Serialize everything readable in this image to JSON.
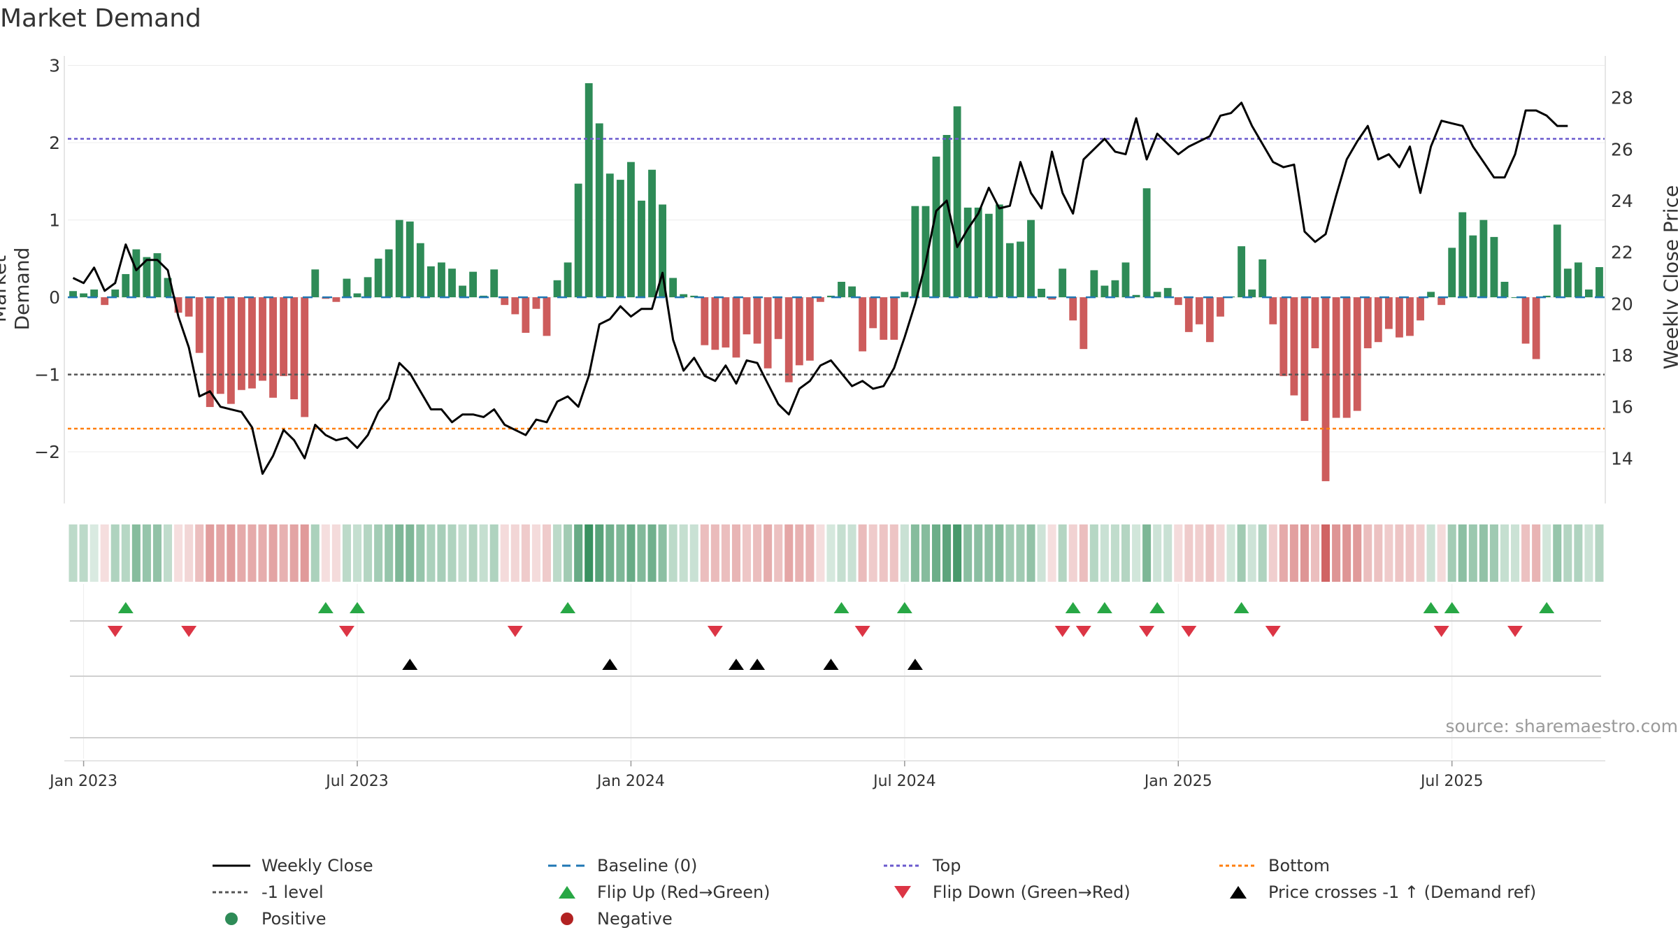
{
  "title": "Market Demand",
  "source": "source: sharemaestro.com",
  "colors": {
    "positive": "#2e8b57",
    "negative": "#cd5c5c",
    "price_line": "#000000",
    "baseline": "#1f77b4",
    "top": "#6a5acd",
    "bottom": "#ff7f0e",
    "minus_one": "#555555",
    "flip_up": "#28a745",
    "flip_down": "#dc3545",
    "cross": "#000000"
  },
  "chart_data": {
    "type": "bar+line",
    "title": "Market Demand",
    "ylabel_left": "Market Demand",
    "ylabel_right": "Weekly Close Price",
    "ylim_left": [
      -2.65,
      3.05
    ],
    "ylim_right": [
      12.3,
      29.4
    ],
    "yticks_left": [
      3,
      2,
      1,
      0,
      -1,
      -2
    ],
    "ytick_labels_left": [
      "3",
      "2",
      "1",
      "0",
      "−1",
      "−2"
    ],
    "yticks_right": [
      14,
      16,
      18,
      20,
      22,
      24,
      26,
      28
    ],
    "ytick_labels_right": [
      "14",
      "16",
      "18",
      "20",
      "22",
      "24",
      "26",
      "28"
    ],
    "x_ticks": [
      {
        "week": 1,
        "label": "Jan 2023"
      },
      {
        "week": 27,
        "label": "Jul 2023"
      },
      {
        "week": 53,
        "label": "Jan 2024"
      },
      {
        "week": 79,
        "label": "Jul 2024"
      },
      {
        "week": 105,
        "label": "Jan 2025"
      },
      {
        "week": 131,
        "label": "Jul 2025"
      }
    ],
    "reference_lines": {
      "top": 2.05,
      "bottom": -1.7,
      "minus_one": -1.0,
      "baseline": 0
    },
    "demand": [
      0.08,
      0.05,
      0.1,
      -0.1,
      0.1,
      0.3,
      0.62,
      0.52,
      0.57,
      0.25,
      -0.2,
      -0.25,
      -0.72,
      -1.42,
      -1.25,
      -1.38,
      -1.2,
      -1.18,
      -1.08,
      -1.3,
      -1.02,
      -1.32,
      -1.55,
      0.36,
      -0.02,
      -0.06,
      0.24,
      0.05,
      0.26,
      0.5,
      0.62,
      1.0,
      0.98,
      0.7,
      0.4,
      0.45,
      0.37,
      0.15,
      0.33,
      0.02,
      0.36,
      -0.1,
      -0.22,
      -0.46,
      -0.15,
      -0.5,
      0.22,
      0.45,
      1.47,
      2.77,
      2.25,
      1.6,
      1.52,
      1.75,
      1.25,
      1.65,
      1.2,
      0.25,
      0.04,
      0.02,
      -0.62,
      -0.68,
      -0.65,
      -0.78,
      -0.48,
      -0.6,
      -0.92,
      -0.54,
      -1.1,
      -0.88,
      -0.82,
      -0.06,
      0.02,
      0.2,
      0.14,
      -0.7,
      -0.4,
      -0.55,
      -0.55,
      0.07,
      1.18,
      1.18,
      1.82,
      2.1,
      2.47,
      1.16,
      1.16,
      1.08,
      1.2,
      0.7,
      0.72,
      1.0,
      0.11,
      -0.03,
      0.37,
      -0.3,
      -0.67,
      0.35,
      0.15,
      0.22,
      0.45,
      0.03,
      1.41,
      0.07,
      0.12,
      -0.1,
      -0.45,
      -0.35,
      -0.58,
      -0.25,
      0.01,
      0.66,
      0.1,
      0.49,
      -0.35,
      -1.02,
      -1.27,
      -1.6,
      -0.66,
      -2.38,
      -1.56,
      -1.56,
      -1.47,
      -0.66,
      -0.58,
      -0.41,
      -0.52,
      -0.5,
      -0.3,
      0.07,
      -0.1,
      0.64,
      1.1,
      0.8,
      1.0,
      0.78,
      0.2,
      0.0,
      -0.6,
      -0.8,
      0.02,
      0.94,
      0.37,
      0.45,
      0.1,
      0.39
    ],
    "weekly_close": [
      21.0,
      20.8,
      21.4,
      20.5,
      20.8,
      22.3,
      21.3,
      21.7,
      21.7,
      21.3,
      19.5,
      18.3,
      16.4,
      16.6,
      16.0,
      15.9,
      15.8,
      15.2,
      13.4,
      14.1,
      15.1,
      14.7,
      14.0,
      15.3,
      14.9,
      14.7,
      14.8,
      14.4,
      14.9,
      15.8,
      16.3,
      17.7,
      17.3,
      16.6,
      15.9,
      15.9,
      15.4,
      15.7,
      15.7,
      15.6,
      15.9,
      15.3,
      15.1,
      14.9,
      15.5,
      15.4,
      16.2,
      16.4,
      16.0,
      17.2,
      19.2,
      19.4,
      19.9,
      19.5,
      19.8,
      19.8,
      21.2,
      18.6,
      17.4,
      17.9,
      17.2,
      17.0,
      17.6,
      16.9,
      17.8,
      17.7,
      16.9,
      16.1,
      15.7,
      16.7,
      17.0,
      17.6,
      17.8,
      17.3,
      16.8,
      17.0,
      16.7,
      16.8,
      17.5,
      18.7,
      20.0,
      21.6,
      23.6,
      24.0,
      22.2,
      22.9,
      23.5,
      24.5,
      23.7,
      23.8,
      25.5,
      24.3,
      23.7,
      25.9,
      24.3,
      23.5,
      25.6,
      26.0,
      26.4,
      25.9,
      25.8,
      27.2,
      25.6,
      26.6,
      26.2,
      25.8,
      26.1,
      26.3,
      26.5,
      27.3,
      27.4,
      27.8,
      26.9,
      26.2,
      25.5,
      25.3,
      25.4,
      22.8,
      22.4,
      22.7,
      24.2,
      25.6,
      26.3,
      26.9,
      25.6,
      25.8,
      25.3,
      26.1,
      24.3,
      26.1,
      27.1,
      27.0,
      26.9,
      26.1,
      25.5,
      24.9,
      24.9,
      25.8,
      27.5,
      27.5,
      27.3,
      26.9,
      26.9
    ],
    "strip_intensity": [
      0.32,
      0.32,
      0.18,
      0.2,
      0.38,
      0.35,
      0.58,
      0.5,
      0.52,
      0.3,
      0.2,
      0.25,
      0.4,
      0.6,
      0.56,
      0.6,
      0.52,
      0.52,
      0.5,
      0.56,
      0.48,
      0.56,
      0.62,
      0.4,
      0.2,
      0.22,
      0.32,
      0.28,
      0.36,
      0.44,
      0.5,
      0.62,
      0.62,
      0.5,
      0.4,
      0.42,
      0.38,
      0.3,
      0.36,
      0.28,
      0.38,
      0.22,
      0.25,
      0.32,
      0.22,
      0.32,
      0.32,
      0.45,
      0.72,
      0.95,
      0.8,
      0.68,
      0.62,
      0.72,
      0.6,
      0.68,
      0.55,
      0.32,
      0.28,
      0.26,
      0.4,
      0.42,
      0.4,
      0.45,
      0.35,
      0.4,
      0.5,
      0.38,
      0.55,
      0.48,
      0.46,
      0.2,
      0.2,
      0.28,
      0.26,
      0.42,
      0.32,
      0.36,
      0.36,
      0.26,
      0.58,
      0.58,
      0.7,
      0.78,
      0.88,
      0.56,
      0.56,
      0.55,
      0.58,
      0.45,
      0.45,
      0.52,
      0.24,
      0.2,
      0.36,
      0.28,
      0.4,
      0.35,
      0.26,
      0.3,
      0.36,
      0.22,
      0.62,
      0.24,
      0.26,
      0.22,
      0.32,
      0.3,
      0.36,
      0.26,
      0.22,
      0.45,
      0.24,
      0.38,
      0.3,
      0.52,
      0.58,
      0.65,
      0.4,
      0.95,
      0.65,
      0.65,
      0.62,
      0.4,
      0.38,
      0.32,
      0.36,
      0.35,
      0.3,
      0.25,
      0.22,
      0.44,
      0.55,
      0.48,
      0.52,
      0.46,
      0.28,
      0.25,
      0.38,
      0.46,
      0.22,
      0.5,
      0.36,
      0.38,
      0.25,
      0.36
    ],
    "flip_up_weeks": [
      5,
      24,
      27,
      47,
      73,
      79,
      95,
      98,
      103,
      111,
      129,
      131,
      140
    ],
    "flip_down_weeks": [
      4,
      11,
      26,
      42,
      61,
      75,
      94,
      96,
      102,
      106,
      114,
      130,
      137
    ],
    "cross_weeks": [
      32,
      51,
      63,
      65,
      72,
      80
    ]
  },
  "legend": [
    {
      "label": "Weekly Close",
      "style": "line-solid",
      "color": "#000000"
    },
    {
      "label": "Baseline (0)",
      "style": "line-dashed",
      "color": "#1f77b4"
    },
    {
      "label": "Top",
      "style": "line-dotted",
      "color": "#6a5acd"
    },
    {
      "label": "Bottom",
      "style": "line-dotted",
      "color": "#ff7f0e"
    },
    {
      "label": "-1 level",
      "style": "line-dotted",
      "color": "#555555"
    },
    {
      "label": "Flip Up (Red→Green)",
      "style": "triangle-up",
      "color": "#28a745"
    },
    {
      "label": "Flip Down (Green→Red)",
      "style": "triangle-down",
      "color": "#dc3545"
    },
    {
      "label": "Price crosses -1 ↑ (Demand ref)",
      "style": "triangle-up",
      "color": "#000000"
    },
    {
      "label": "Positive",
      "style": "dot",
      "color": "#2e8b57"
    },
    {
      "label": "Negative",
      "style": "dot",
      "color": "#b22222"
    }
  ]
}
